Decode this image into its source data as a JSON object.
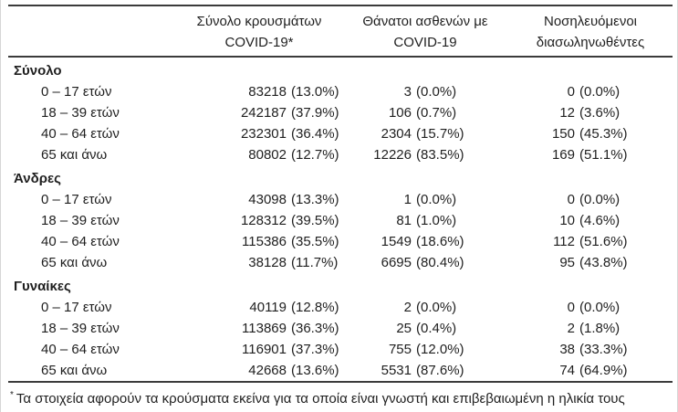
{
  "colors": {
    "background": "#ffffff",
    "text": "#1f1f1f",
    "rule": "#3b3b3b",
    "edge": "#d6d6d6"
  },
  "table": {
    "columns": [
      {
        "line1": "Σύνολο κρουσμάτων",
        "line2": "COVID-19*"
      },
      {
        "line1": "Θάνατοι ασθενών με",
        "line2": "COVID-19"
      },
      {
        "line1": "Νοσηλευόμενοι",
        "line2": "διασωληνωθέντες"
      }
    ],
    "sections": [
      {
        "label": "Σύνολο",
        "rows": [
          {
            "label": "0 – 17 ετών",
            "cases_n": "83218",
            "cases_p": "(13.0%)",
            "deaths_n": "3",
            "deaths_p": "(0.0%)",
            "intub_n": "0",
            "intub_p": "(0.0%)"
          },
          {
            "label": "18 – 39 ετών",
            "cases_n": "242187",
            "cases_p": "(37.9%)",
            "deaths_n": "106",
            "deaths_p": "(0.7%)",
            "intub_n": "12",
            "intub_p": "(3.6%)"
          },
          {
            "label": "40 – 64 ετών",
            "cases_n": "232301",
            "cases_p": "(36.4%)",
            "deaths_n": "2304",
            "deaths_p": "(15.7%)",
            "intub_n": "150",
            "intub_p": "(45.3%)"
          },
          {
            "label": "65 και άνω",
            "cases_n": "80802",
            "cases_p": "(12.7%)",
            "deaths_n": "12226",
            "deaths_p": "(83.5%)",
            "intub_n": "169",
            "intub_p": "(51.1%)"
          }
        ]
      },
      {
        "label": "Άνδρες",
        "rows": [
          {
            "label": "0 – 17 ετών",
            "cases_n": "43098",
            "cases_p": "(13.3%)",
            "deaths_n": "1",
            "deaths_p": "(0.0%)",
            "intub_n": "0",
            "intub_p": "(0.0%)"
          },
          {
            "label": "18 – 39 ετών",
            "cases_n": "128312",
            "cases_p": "(39.5%)",
            "deaths_n": "81",
            "deaths_p": "(1.0%)",
            "intub_n": "10",
            "intub_p": "(4.6%)"
          },
          {
            "label": "40 – 64 ετών",
            "cases_n": "115386",
            "cases_p": "(35.5%)",
            "deaths_n": "1549",
            "deaths_p": "(18.6%)",
            "intub_n": "112",
            "intub_p": "(51.6%)"
          },
          {
            "label": "65 και άνω",
            "cases_n": "38128",
            "cases_p": "(11.7%)",
            "deaths_n": "6695",
            "deaths_p": "(80.4%)",
            "intub_n": "95",
            "intub_p": "(43.8%)"
          }
        ]
      },
      {
        "label": "Γυναίκες",
        "rows": [
          {
            "label": "0 – 17 ετών",
            "cases_n": "40119",
            "cases_p": "(12.8%)",
            "deaths_n": "2",
            "deaths_p": "(0.0%)",
            "intub_n": "0",
            "intub_p": "(0.0%)"
          },
          {
            "label": "18 – 39 ετών",
            "cases_n": "113869",
            "cases_p": "(36.3%)",
            "deaths_n": "25",
            "deaths_p": "(0.4%)",
            "intub_n": "2",
            "intub_p": "(1.8%)"
          },
          {
            "label": "40 – 64 ετών",
            "cases_n": "116901",
            "cases_p": "(37.3%)",
            "deaths_n": "755",
            "deaths_p": "(12.0%)",
            "intub_n": "38",
            "intub_p": "(33.3%)"
          },
          {
            "label": "65 και άνω",
            "cases_n": "42668",
            "cases_p": "(13.6%)",
            "deaths_n": "5531",
            "deaths_p": "(87.6%)",
            "intub_n": "74",
            "intub_p": "(64.9%)"
          }
        ]
      }
    ],
    "footnote_marker": "*",
    "footnote": "Τα στοιχεία αφορούν τα κρούσματα εκείνα για τα οποία είναι γνωστή και επιβεβαιωμένη η ηλικία τους"
  }
}
